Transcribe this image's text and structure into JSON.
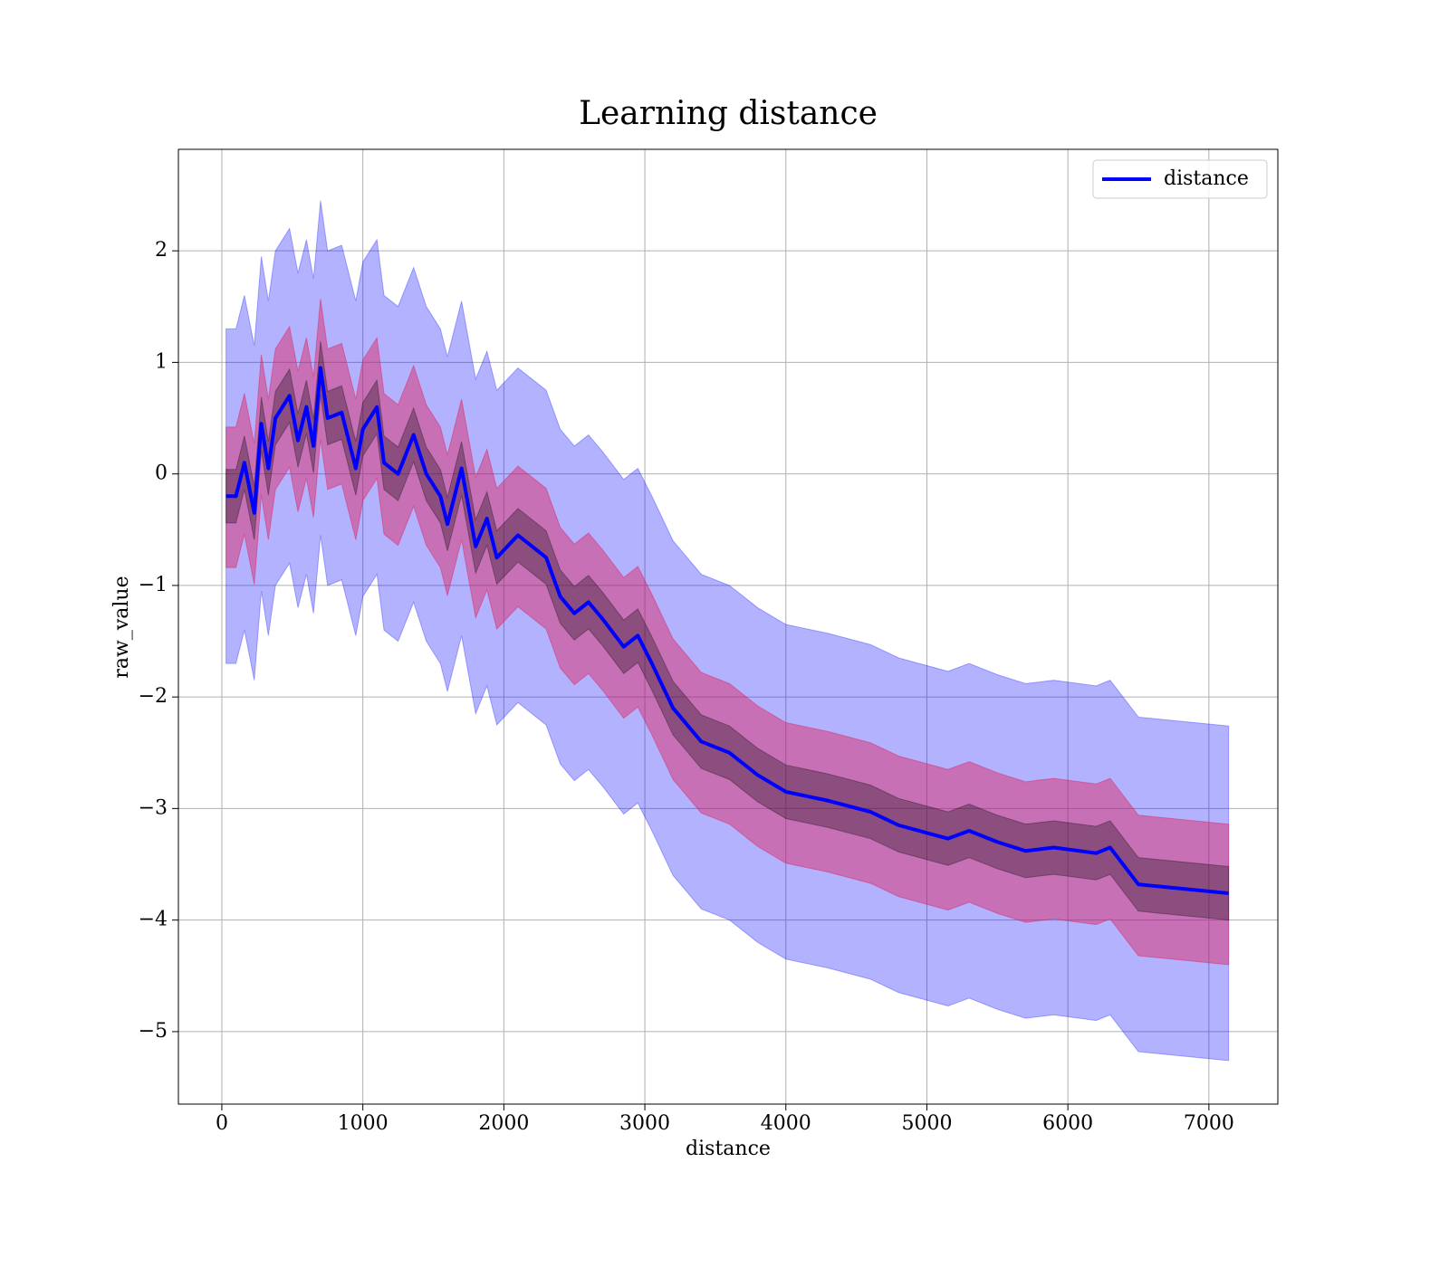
{
  "chart_data": {
    "type": "line",
    "title": "Learning distance",
    "xlabel": "distance",
    "ylabel": "raw_value",
    "x": [
      30,
      100,
      160,
      230,
      280,
      330,
      380,
      480,
      540,
      600,
      650,
      700,
      750,
      850,
      950,
      1000,
      1100,
      1150,
      1250,
      1360,
      1450,
      1550,
      1600,
      1700,
      1800,
      1880,
      1950,
      2100,
      2300,
      2400,
      2500,
      2600,
      2700,
      2850,
      2950,
      3050,
      3200,
      3300,
      3400,
      3600,
      3800,
      4000,
      4300,
      4600,
      4800,
      5150,
      5300,
      5500,
      5700,
      5900,
      6200,
      6300,
      6500,
      7140
    ],
    "series": [
      {
        "name": "distance",
        "color": "#0000ff",
        "values": [
          -0.2,
          -0.2,
          0.1,
          -0.35,
          0.45,
          0.05,
          0.5,
          0.7,
          0.3,
          0.6,
          0.25,
          0.95,
          0.5,
          0.55,
          0.05,
          0.4,
          0.6,
          0.1,
          0.0,
          0.35,
          0.0,
          -0.2,
          -0.45,
          0.05,
          -0.65,
          -0.4,
          -0.75,
          -0.55,
          -0.75,
          -1.1,
          -1.25,
          -1.15,
          -1.3,
          -1.55,
          -1.45,
          -1.7,
          -2.1,
          -2.25,
          -2.4,
          -2.5,
          -2.7,
          -2.85,
          -2.93,
          -3.03,
          -3.15,
          -3.27,
          -3.2,
          -3.3,
          -3.38,
          -3.35,
          -3.4,
          -3.35,
          -3.68,
          -3.76
        ]
      }
    ],
    "bands": [
      {
        "color": "#0000ff",
        "alpha": 0.3,
        "upper": [
          1.3,
          1.3,
          1.6,
          1.15,
          1.95,
          1.55,
          2.0,
          2.2,
          1.8,
          2.1,
          1.75,
          2.45,
          2.0,
          2.05,
          1.55,
          1.9,
          2.1,
          1.6,
          1.5,
          1.85,
          1.5,
          1.3,
          1.05,
          1.55,
          0.85,
          1.1,
          0.75,
          0.95,
          0.75,
          0.4,
          0.25,
          0.35,
          0.2,
          -0.05,
          0.05,
          -0.2,
          -0.6,
          -0.75,
          -0.9,
          -1.0,
          -1.2,
          -1.35,
          -1.43,
          -1.53,
          -1.65,
          -1.77,
          -1.7,
          -1.8,
          -1.88,
          -1.85,
          -1.9,
          -1.85,
          -2.18,
          -2.26
        ],
        "lower": [
          -1.7,
          -1.7,
          -1.4,
          -1.85,
          -1.05,
          -1.45,
          -1.0,
          -0.8,
          -1.2,
          -0.9,
          -1.25,
          -0.55,
          -1.0,
          -0.95,
          -1.45,
          -1.1,
          -0.9,
          -1.4,
          -1.5,
          -1.15,
          -1.5,
          -1.7,
          -1.95,
          -1.45,
          -2.15,
          -1.9,
          -2.25,
          -2.05,
          -2.25,
          -2.6,
          -2.75,
          -2.65,
          -2.8,
          -3.05,
          -2.95,
          -3.2,
          -3.6,
          -3.75,
          -3.9,
          -4.0,
          -4.2,
          -4.35,
          -4.43,
          -4.53,
          -4.65,
          -4.77,
          -4.7,
          -4.8,
          -4.88,
          -4.85,
          -4.9,
          -4.85,
          -5.18,
          -5.26
        ]
      },
      {
        "color": "#e0205a",
        "alpha": 0.45,
        "upper": [
          0.42,
          0.42,
          0.72,
          0.27,
          1.07,
          0.67,
          1.12,
          1.32,
          0.92,
          1.22,
          0.87,
          1.57,
          1.12,
          1.17,
          0.67,
          1.02,
          1.22,
          0.72,
          0.62,
          0.97,
          0.62,
          0.42,
          0.17,
          0.67,
          -0.03,
          0.22,
          -0.13,
          0.07,
          -0.13,
          -0.48,
          -0.63,
          -0.53,
          -0.68,
          -0.93,
          -0.83,
          -1.08,
          -1.48,
          -1.63,
          -1.78,
          -1.88,
          -2.08,
          -2.23,
          -2.31,
          -2.41,
          -2.53,
          -2.65,
          -2.58,
          -2.68,
          -2.76,
          -2.73,
          -2.78,
          -2.73,
          -3.06,
          -3.14
        ],
        "lower": [
          -0.84,
          -0.84,
          -0.54,
          -0.99,
          -0.19,
          -0.59,
          -0.14,
          0.06,
          -0.34,
          -0.04,
          -0.39,
          0.31,
          -0.14,
          -0.09,
          -0.59,
          -0.24,
          -0.04,
          -0.54,
          -0.64,
          -0.29,
          -0.64,
          -0.84,
          -1.09,
          -0.59,
          -1.29,
          -1.04,
          -1.39,
          -1.19,
          -1.39,
          -1.74,
          -1.89,
          -1.79,
          -1.94,
          -2.19,
          -2.09,
          -2.34,
          -2.74,
          -2.89,
          -3.04,
          -3.14,
          -3.34,
          -3.49,
          -3.57,
          -3.67,
          -3.79,
          -3.91,
          -3.84,
          -3.94,
          -4.02,
          -3.99,
          -4.04,
          -3.99,
          -4.32,
          -4.4
        ]
      },
      {
        "color": "#000000",
        "alpha": 0.3,
        "upper": [
          0.04,
          0.04,
          0.34,
          -0.11,
          0.69,
          0.29,
          0.74,
          0.94,
          0.54,
          0.84,
          0.49,
          1.19,
          0.74,
          0.79,
          0.29,
          0.64,
          0.84,
          0.34,
          0.24,
          0.59,
          0.24,
          0.04,
          -0.21,
          0.29,
          -0.41,
          -0.16,
          -0.51,
          -0.31,
          -0.51,
          -0.86,
          -1.01,
          -0.91,
          -1.06,
          -1.31,
          -1.21,
          -1.46,
          -1.86,
          -2.01,
          -2.16,
          -2.26,
          -2.46,
          -2.61,
          -2.69,
          -2.79,
          -2.91,
          -3.03,
          -2.96,
          -3.06,
          -3.14,
          -3.11,
          -3.16,
          -3.11,
          -3.44,
          -3.52
        ],
        "lower": [
          -0.44,
          -0.44,
          -0.14,
          -0.59,
          0.21,
          -0.19,
          0.26,
          0.46,
          0.06,
          0.36,
          0.01,
          0.71,
          0.26,
          0.31,
          -0.19,
          0.16,
          0.36,
          -0.14,
          -0.24,
          0.11,
          -0.24,
          -0.44,
          -0.69,
          -0.19,
          -0.89,
          -0.64,
          -0.99,
          -0.79,
          -0.99,
          -1.34,
          -1.49,
          -1.39,
          -1.54,
          -1.79,
          -1.69,
          -1.94,
          -2.34,
          -2.49,
          -2.64,
          -2.74,
          -2.94,
          -3.09,
          -3.17,
          -3.27,
          -3.39,
          -3.51,
          -3.44,
          -3.54,
          -3.62,
          -3.59,
          -3.64,
          -3.59,
          -3.92,
          -4.0
        ]
      }
    ],
    "xlim": [
      -308,
      7489
    ],
    "xticks": [
      0,
      1000,
      2000,
      3000,
      4000,
      5000,
      6000,
      7000
    ],
    "ylim": [
      -5.65,
      2.91
    ],
    "yticks": [
      {
        "value": -5,
        "label": "−5"
      },
      {
        "value": -4,
        "label": "−4"
      },
      {
        "value": -3,
        "label": "−3"
      },
      {
        "value": -2,
        "label": "−2"
      },
      {
        "value": -1,
        "label": "−1"
      },
      0,
      1,
      2
    ],
    "grid": true,
    "legend": "upper right"
  }
}
